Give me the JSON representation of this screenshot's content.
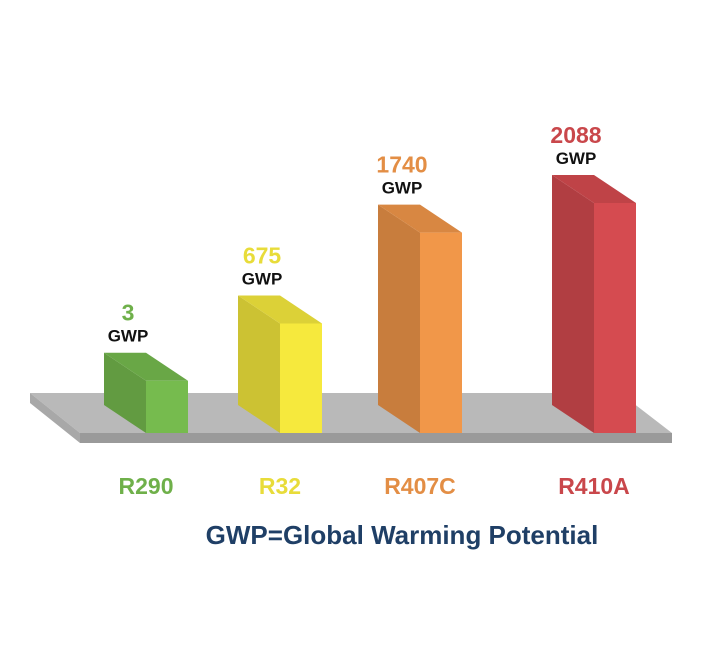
{
  "chart_data": {
    "type": "bar",
    "categories": [
      "R290",
      "R32",
      "R407C",
      "R410A"
    ],
    "values": [
      3,
      675,
      1740,
      2088
    ],
    "value_unit": "GWP",
    "series": [
      {
        "values": [
          3,
          675,
          1740,
          2088
        ]
      }
    ],
    "colors": [
      "#6fb04a",
      "#e8dc3a",
      "#e38e45",
      "#c9474b"
    ],
    "footnote": "GWP=Global Warming Potential",
    "ylim": [
      0,
      2088
    ],
    "legend": "none",
    "grid": false,
    "style": "3d-bars-on-platform"
  }
}
